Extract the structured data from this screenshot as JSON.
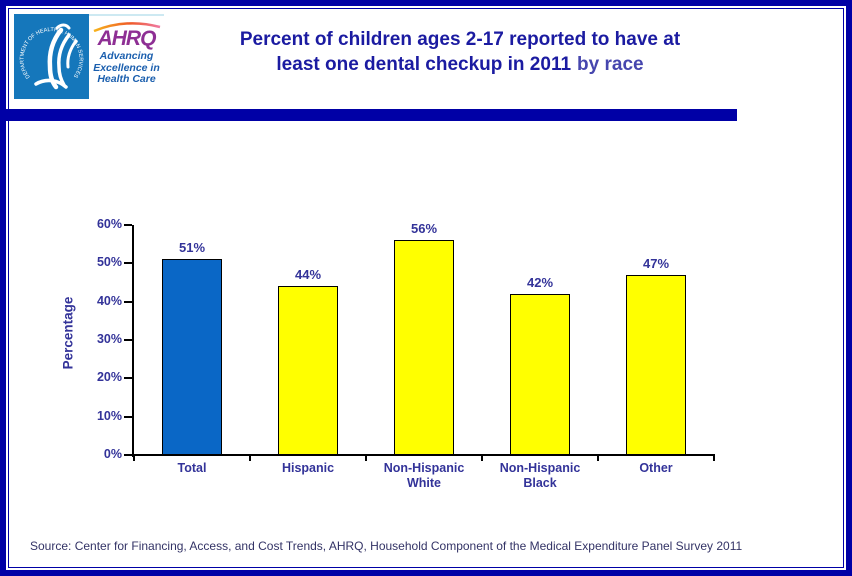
{
  "header": {
    "logo": {
      "hhs_seal_text": "DEPARTMENT OF HEALTH & HUMAN SERVICES · USA",
      "ahrq_acronym": "AHRQ",
      "ahrq_tagline_lines": [
        "Advancing",
        "Excellence in",
        "Health Care"
      ]
    },
    "title": {
      "line1": "Percent of children ages 2-17 reported to have at",
      "line2": "least one dental checkup in 2011",
      "accent": "by race"
    }
  },
  "chart_data": {
    "type": "bar",
    "title": "Percent of children ages 2-17 reported to have at least one dental checkup in 2011 by race",
    "categories": [
      "Total",
      "Hispanic",
      "Non-Hispanic White",
      "Non-Hispanic Black",
      "Other"
    ],
    "categories_lines": [
      [
        "Total"
      ],
      [
        "Hispanic"
      ],
      [
        "Non-Hispanic",
        "White"
      ],
      [
        "Non-Hispanic",
        "Black"
      ],
      [
        "Other"
      ]
    ],
    "values": [
      51,
      44,
      56,
      42,
      47
    ],
    "value_labels": [
      "51%",
      "44%",
      "56%",
      "42%",
      "47%"
    ],
    "xlabel": "",
    "ylabel": "Percentage",
    "ylim": [
      0,
      60
    ],
    "yticks": [
      0,
      10,
      20,
      30,
      40,
      50,
      60
    ],
    "ytick_labels": [
      "0%",
      "10%",
      "20%",
      "30%",
      "40%",
      "50%",
      "60%"
    ],
    "grid": false,
    "legend": "none",
    "bar_colors": [
      "#0a67c6",
      "#ffff00",
      "#ffff00",
      "#ffff00",
      "#ffff00"
    ],
    "bar_border_color": "#000000"
  },
  "footer": {
    "source": "Source: Center for Financing, Access, and Cost Trends, AHRQ, Household Component of the Medical Expenditure Panel Survey 2011"
  },
  "colors": {
    "border_navy": "#0000a6",
    "title_navy": "#1b1ba1",
    "title_accent": "#4646ae",
    "label_blue": "#333399",
    "axis_black": "#000000",
    "bar_blue": "#0a67c6",
    "bar_yellow": "#ffff00",
    "hhs_blue": "#1577bb",
    "ahrq_purple": "#8e2f94",
    "tagline_blue": "#1b5fae",
    "source_text": "#333366"
  }
}
